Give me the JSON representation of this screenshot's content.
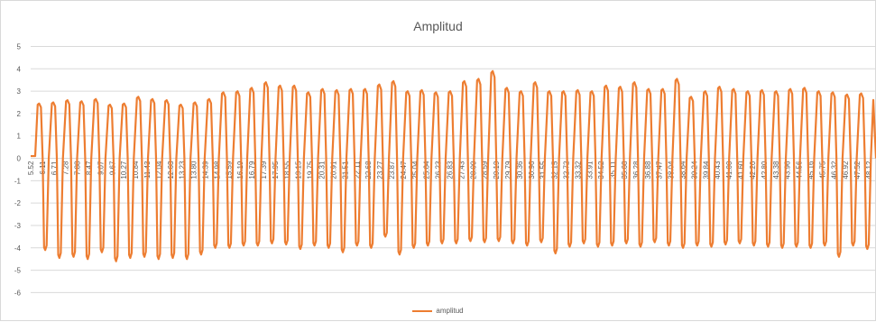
{
  "chart_data": {
    "type": "line",
    "title": "Amplitud",
    "series": [
      {
        "name": "amplitud",
        "color": "#ED7D31"
      }
    ],
    "ylim": [
      -6,
      5
    ],
    "yticks": [
      5,
      4,
      3,
      2,
      1,
      0,
      -1,
      -2,
      -3,
      -4,
      -5,
      -6
    ],
    "grid": "horizontal",
    "legend_position": "bottom",
    "x_tick_labels": [
      "5.52",
      "6.11",
      "6.71",
      "7.28",
      "7.88",
      "8.47",
      "9.07",
      "9.67",
      "10.27",
      "10.84",
      "11.43",
      "12.04",
      "12.63",
      "13.23",
      "13.80",
      "14.39",
      "14.98",
      "15.59",
      "16.19",
      "16.79",
      "17.39",
      "17.95",
      "18.55",
      "19.15",
      "19.75",
      "20.31",
      "20.91",
      "21.51",
      "22.11",
      "22.68",
      "23.27",
      "23.87",
      "24.47",
      "25.04",
      "25.64",
      "26.23",
      "26.83",
      "27.43",
      "28.00",
      "28.59",
      "29.19",
      "29.79",
      "30.36",
      "30.96",
      "31.55",
      "32.15",
      "32.72",
      "33.32",
      "33.91",
      "34.52",
      "35.11",
      "35.68",
      "36.28",
      "36.88",
      "37.47",
      "38.04",
      "38.64",
      "39.24",
      "39.84",
      "40.43",
      "41.00",
      "41.60",
      "42.20",
      "42.80",
      "43.38",
      "43.96",
      "44.56",
      "45.16",
      "45.75",
      "46.32",
      "46.92",
      "47.52",
      "48.12"
    ],
    "cycles_peak": [
      2.45,
      2.5,
      2.6,
      2.55,
      2.65,
      2.4,
      2.45,
      2.75,
      2.65,
      2.6,
      2.4,
      2.5,
      2.65,
      2.95,
      3.0,
      3.15,
      3.4,
      3.25,
      3.25,
      2.95,
      3.1,
      3.05,
      3.1,
      3.1,
      3.3,
      3.45,
      3.0,
      3.05,
      2.95,
      3.0,
      3.45,
      3.55,
      3.9,
      3.15,
      3.0,
      3.4,
      3.0,
      3.0,
      3.05,
      3.0,
      3.25,
      3.2,
      3.4,
      3.1,
      3.1,
      3.55,
      2.75,
      3.0,
      3.2,
      3.1,
      3.0,
      3.05,
      3.0,
      3.1,
      3.15,
      3.0,
      2.95,
      2.85,
      2.9
    ],
    "cycles_trough": [
      -4.1,
      -4.45,
      -4.4,
      -4.5,
      -4.2,
      -4.6,
      -4.45,
      -4.4,
      -4.5,
      -4.45,
      -4.5,
      -4.3,
      -4.0,
      -4.0,
      -3.9,
      -3.9,
      -3.8,
      -3.85,
      -4.05,
      -3.9,
      -4.0,
      -4.2,
      -3.9,
      -4.0,
      -3.5,
      -4.3,
      -4.0,
      -3.9,
      -3.8,
      -3.8,
      -3.7,
      -3.75,
      -3.7,
      -3.8,
      -3.9,
      -3.75,
      -4.25,
      -3.95,
      -3.8,
      -3.95,
      -3.9,
      -3.8,
      -3.95,
      -3.75,
      -3.9,
      -4.0,
      -3.9,
      -3.95,
      -3.85,
      -3.8,
      -3.9,
      -3.95,
      -4.0,
      -3.95,
      -4.0,
      -3.9,
      -4.4,
      -3.9,
      -4.05
    ]
  }
}
